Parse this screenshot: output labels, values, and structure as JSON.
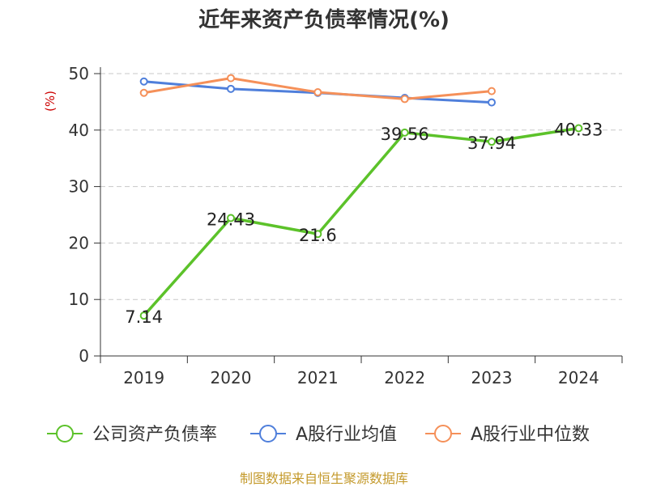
{
  "title": "近年来资产负债率情况(%)",
  "source": "制图数据来自恒生聚源数据库",
  "chart_data": {
    "type": "line",
    "title": "近年来资产负债率情况(%)",
    "ylabel": "(%)",
    "xlabel": "",
    "categories": [
      "2019",
      "2020",
      "2021",
      "2022",
      "2023",
      "2024"
    ],
    "ylim": [
      0,
      50
    ],
    "yticks": [
      0,
      10,
      20,
      30,
      40,
      50
    ],
    "grid": true,
    "legend_position": "bottom",
    "series": [
      {
        "name": "公司资产负债率",
        "color": "#5cc22a",
        "values": [
          7.14,
          24.43,
          21.6,
          39.56,
          37.94,
          40.33
        ],
        "labels": [
          "7.14",
          "24.43",
          "21.6",
          "39.56",
          "37.94",
          "40.33"
        ]
      },
      {
        "name": "A股行业均值",
        "color": "#4f7fdb",
        "values": [
          48.6,
          47.3,
          46.6,
          45.7,
          44.9,
          null
        ]
      },
      {
        "name": "A股行业中位数",
        "color": "#f59059",
        "values": [
          46.6,
          49.2,
          46.7,
          45.5,
          46.9,
          null
        ]
      }
    ]
  }
}
